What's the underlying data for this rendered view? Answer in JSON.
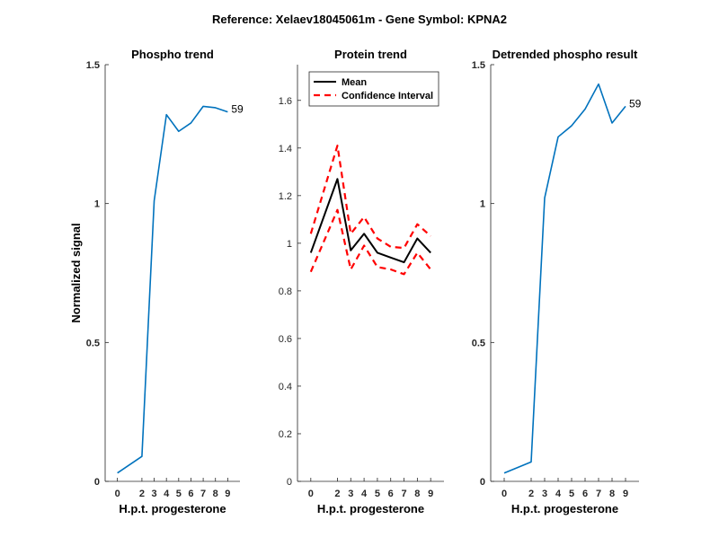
{
  "figure": {
    "title": "Reference:  Xelaev18045061m - Gene Symbol:  KPNA2"
  },
  "chart_data": [
    {
      "type": "line",
      "title": "Phospho trend",
      "xlabel": "H.p.t. progesterone",
      "ylabel": "Normalized signal",
      "x": [
        0,
        2,
        3,
        4,
        5,
        6,
        7,
        8,
        9
      ],
      "xticks": [
        "0",
        "2",
        "3",
        "4",
        "5",
        "6",
        "7",
        "8",
        "9"
      ],
      "yticks": [
        "0",
        "0.5",
        "1",
        "1.5"
      ],
      "ylim": [
        0,
        1.5
      ],
      "series": [
        {
          "values": [
            0.03,
            0.09,
            1.01,
            1.32,
            1.26,
            1.29,
            1.35,
            1.345,
            1.33
          ],
          "color": "#0072BD",
          "style": "solid"
        }
      ],
      "end_label": "59"
    },
    {
      "type": "line",
      "title": "Protein trend",
      "xlabel": "H.p.t. progesterone",
      "ylabel": "",
      "x": [
        0,
        2,
        3,
        4,
        5,
        6,
        7,
        8,
        9
      ],
      "xticks": [
        "0",
        "2",
        "3",
        "4",
        "5",
        "6",
        "7",
        "8",
        "9"
      ],
      "yticks": [
        "0",
        "0.2",
        "0.4",
        "0.6",
        "0.8",
        "1",
        "1.2",
        "1.4",
        "1.6"
      ],
      "ylim": [
        0,
        1.75
      ],
      "legend": {
        "placement": "top-left",
        "entries": [
          "Mean",
          "Confidence Interval"
        ]
      },
      "series": [
        {
          "name": "Mean",
          "values": [
            0.96,
            1.27,
            0.97,
            1.04,
            0.96,
            0.94,
            0.92,
            1.02,
            0.96
          ],
          "color": "#000000",
          "style": "solid"
        },
        {
          "name": "Confidence Interval",
          "values": [
            1.04,
            1.41,
            1.04,
            1.11,
            1.02,
            0.985,
            0.98,
            1.08,
            1.03
          ],
          "color": "#FF0000",
          "style": "dashed"
        },
        {
          "values": [
            0.88,
            1.14,
            0.89,
            0.99,
            0.9,
            0.89,
            0.87,
            0.96,
            0.89
          ],
          "color": "#FF0000",
          "style": "dashed"
        }
      ]
    },
    {
      "type": "line",
      "title": "Detrended phospho result",
      "xlabel": "H.p.t. progesterone",
      "ylabel": "",
      "x": [
        0,
        2,
        3,
        4,
        5,
        6,
        7,
        8,
        9
      ],
      "xticks": [
        "0",
        "2",
        "3",
        "4",
        "5",
        "6",
        "7",
        "8",
        "9"
      ],
      "yticks": [
        "0",
        "0.5",
        "1",
        "1.5"
      ],
      "ylim": [
        0,
        1.5
      ],
      "series": [
        {
          "values": [
            0.03,
            0.07,
            1.02,
            1.24,
            1.28,
            1.34,
            1.43,
            1.29,
            1.35
          ],
          "color": "#0072BD",
          "style": "solid"
        }
      ],
      "end_label": "59"
    }
  ]
}
